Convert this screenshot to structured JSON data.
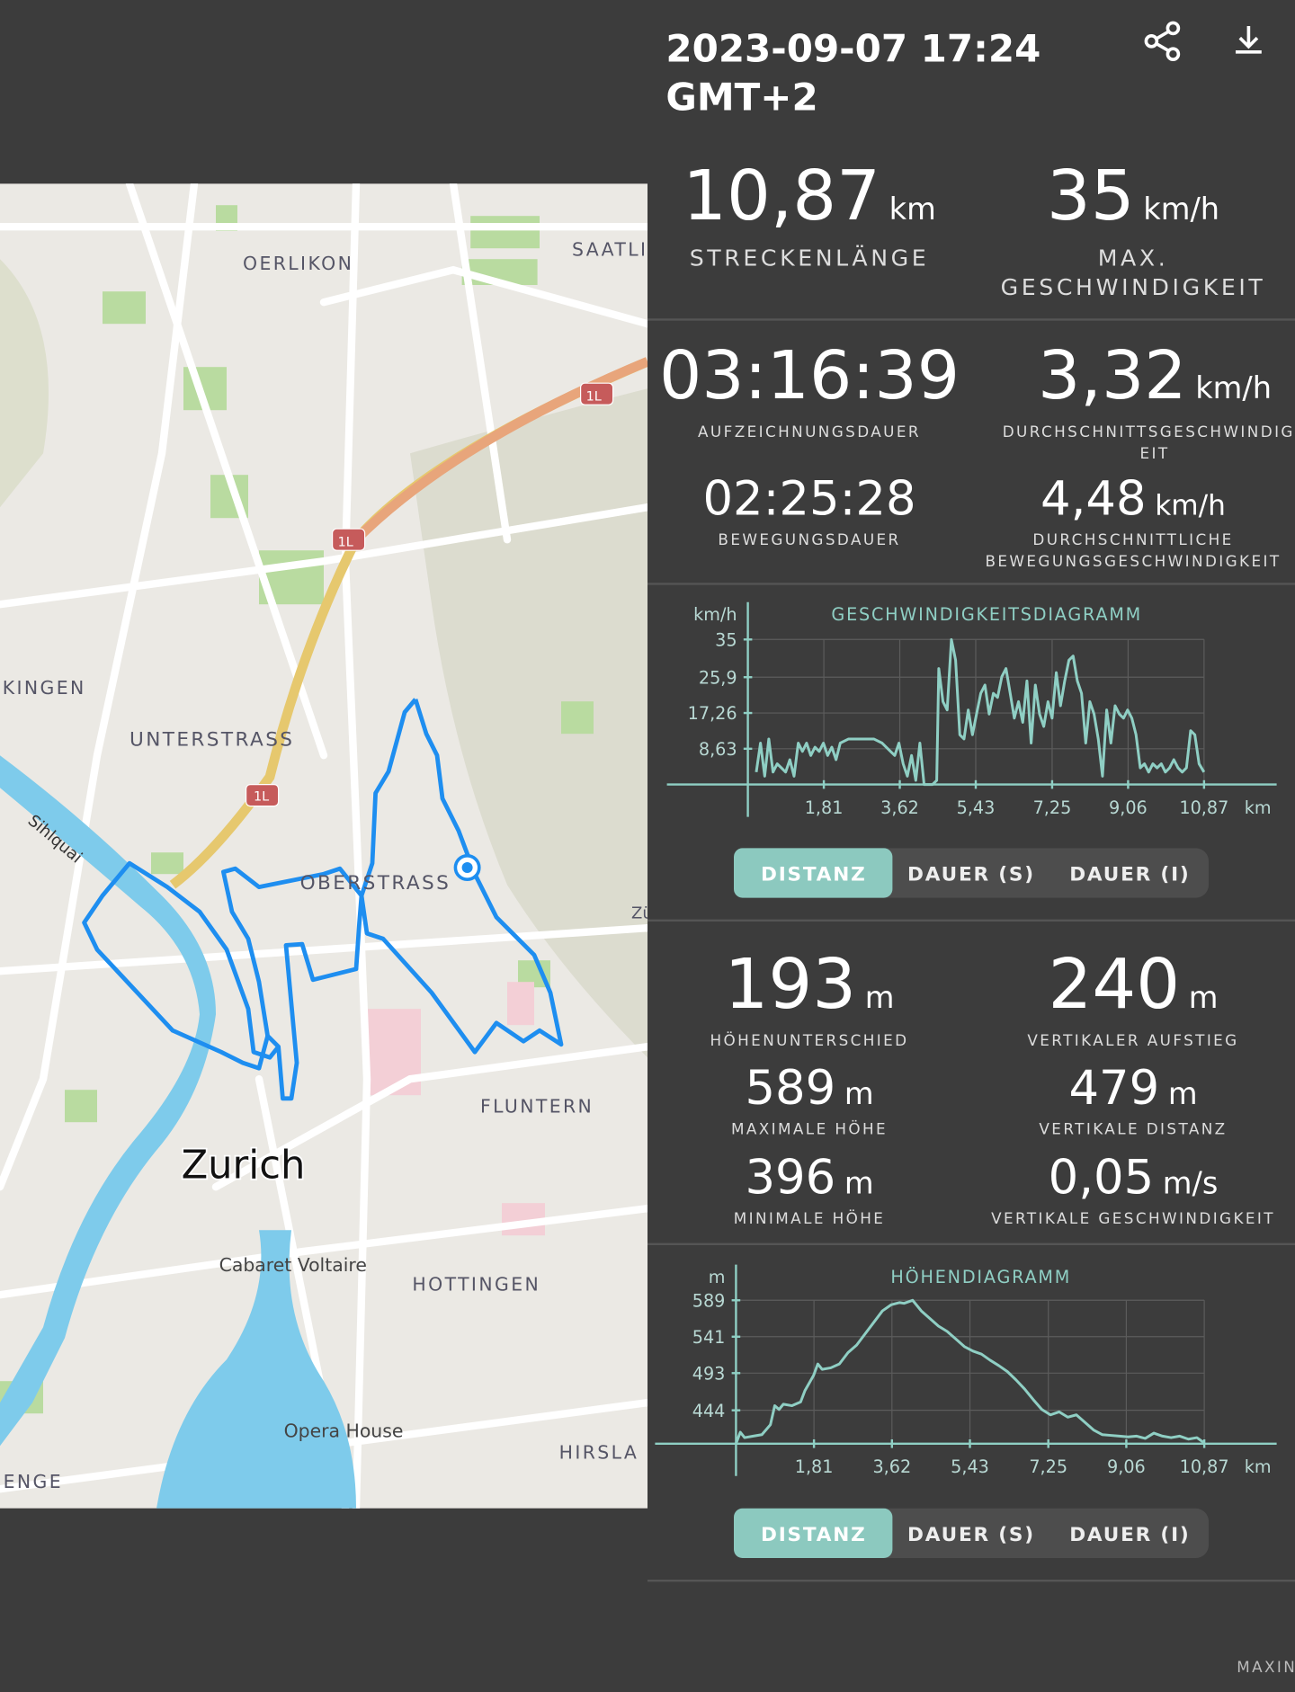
{
  "header": {
    "title_lines": [
      "2023-09-07 17:24",
      "GMT+2"
    ]
  },
  "map": {
    "labels": [
      "OERLIKON",
      "SAATLI",
      "PKINGEN",
      "UNTERSTRASS",
      "Sihlquai",
      "OBERSTRASS",
      "FLUNTERN",
      "Zurich",
      "Cabaret Voltaire",
      "HOTTINGEN",
      "Opera House",
      "HIRSLA",
      "ENGE",
      "1L",
      "1L",
      "1L",
      "Zü"
    ]
  },
  "stats_top": [
    {
      "value": "10,87",
      "unit": "km",
      "label_lines": [
        "STRECKENLÄNGE"
      ]
    },
    {
      "value": "35",
      "unit": "km/h",
      "label_lines": [
        "MAX.",
        "GESCHWINDIGKEIT"
      ]
    },
    {
      "value": "03:16:39",
      "unit": "",
      "label_lines": [
        "AUFZEICHNUNGSDAUER"
      ]
    },
    {
      "value": "3,32",
      "unit": "km/h",
      "label_lines": [
        "DURCHSCHNITTSGESCHWINDIGK",
        "EIT"
      ]
    },
    {
      "value": "02:25:28",
      "unit": "",
      "label_lines": [
        "BEWEGUNGSDAUER"
      ]
    },
    {
      "value": "4,48",
      "unit": "km/h",
      "label_lines": [
        "DURCHSCHNITTLICHE",
        "BEWEGUNGSGESCHWINDIGKEIT"
      ]
    }
  ],
  "stats_elev": [
    {
      "value": "193",
      "unit": "m",
      "label_lines": [
        "HÖHENUNTERSCHIED"
      ]
    },
    {
      "value": "240",
      "unit": "m",
      "label_lines": [
        "VERTIKALER AUFSTIEG"
      ]
    },
    {
      "value": "589",
      "unit": "m",
      "label_lines": [
        "MAXIMALE HÖHE"
      ]
    },
    {
      "value": "479",
      "unit": "m",
      "label_lines": [
        "VERTIKALE DISTANZ"
      ]
    },
    {
      "value": "396",
      "unit": "m",
      "label_lines": [
        "MINIMALE HÖHE"
      ]
    },
    {
      "value": "0,05",
      "unit": "m/s",
      "label_lines": [
        "VERTIKALE GESCHWINDIGKEIT"
      ]
    }
  ],
  "chart_data": [
    {
      "type": "line",
      "title": "GESCHWINDIGKEITSDIAGRAMM",
      "y_label": "km/h",
      "x_label": "km",
      "color": "#8fcfc4",
      "grid": true,
      "xlim": [
        0,
        12.6
      ],
      "ylim": [
        0,
        44
      ],
      "xticks": [
        {
          "value": 1.81,
          "label": "1,81"
        },
        {
          "value": 3.62,
          "label": "3,62"
        },
        {
          "value": 5.43,
          "label": "5,43"
        },
        {
          "value": 7.25,
          "label": "7,25"
        },
        {
          "value": 9.06,
          "label": "9,06"
        },
        {
          "value": 10.87,
          "label": "10,87"
        }
      ],
      "yticks": [
        {
          "value": 8.63,
          "label": "8,63"
        },
        {
          "value": 17.26,
          "label": "17,26"
        },
        {
          "value": 25.9,
          "label": "25,9"
        },
        35
      ],
      "x": [
        0.2,
        0.3,
        0.4,
        0.5,
        0.6,
        0.7,
        0.8,
        0.9,
        1.0,
        1.1,
        1.2,
        1.3,
        1.4,
        1.5,
        1.6,
        1.7,
        1.8,
        1.9,
        2.0,
        2.1,
        2.2,
        2.4,
        2.7,
        3.0,
        3.2,
        3.4,
        3.5,
        3.6,
        3.7,
        3.8,
        3.9,
        4.0,
        4.1,
        4.2,
        4.4,
        4.5,
        4.55,
        4.65,
        4.75,
        4.85,
        4.95,
        5.05,
        5.15,
        5.25,
        5.35,
        5.45,
        5.55,
        5.65,
        5.75,
        5.85,
        5.95,
        6.05,
        6.15,
        6.25,
        6.35,
        6.45,
        6.55,
        6.65,
        6.75,
        6.85,
        6.95,
        7.05,
        7.15,
        7.25,
        7.35,
        7.45,
        7.55,
        7.65,
        7.75,
        7.85,
        7.95,
        8.05,
        8.15,
        8.25,
        8.35,
        8.45,
        8.55,
        8.65,
        8.75,
        8.85,
        8.95,
        9.05,
        9.15,
        9.25,
        9.35,
        9.45,
        9.55,
        9.65,
        9.75,
        9.85,
        9.95,
        10.05,
        10.15,
        10.25,
        10.35,
        10.45,
        10.55,
        10.65,
        10.75,
        10.87
      ],
      "values": [
        3,
        10,
        2,
        11,
        3,
        5,
        4,
        3,
        6,
        2,
        10,
        8,
        10,
        7,
        9,
        8,
        10,
        7,
        9,
        6,
        10,
        11,
        11,
        11,
        10,
        8,
        7,
        10,
        5,
        2,
        7,
        1,
        10,
        0,
        0,
        1,
        28,
        20,
        18,
        35,
        30,
        12,
        11,
        18,
        12,
        17,
        22,
        24,
        17,
        22,
        21,
        26,
        28,
        22,
        16,
        20,
        15,
        25,
        10,
        24,
        17,
        14,
        20,
        16,
        27,
        19,
        25,
        30,
        31,
        25,
        22,
        10,
        20,
        17,
        11,
        2,
        18,
        10,
        19,
        17,
        16,
        18,
        16,
        12,
        4,
        5,
        3,
        5,
        4,
        5,
        3,
        4,
        6,
        4,
        3,
        4,
        13,
        12,
        5,
        3
      ],
      "buttons": [
        "DISTANZ",
        "DAUER (S)",
        "DAUER (I)"
      ]
    },
    {
      "type": "line",
      "title": "HÖHENDIAGRAMM",
      "y_label": "m",
      "x_label": "km",
      "color": "#8fcfc4",
      "grid": true,
      "xlim": [
        0,
        12.55
      ],
      "ylim": [
        400,
        636
      ],
      "xticks": [
        {
          "value": 1.81,
          "label": "1,81"
        },
        {
          "value": 3.62,
          "label": "3,62"
        },
        {
          "value": 5.43,
          "label": "5,43"
        },
        {
          "value": 7.25,
          "label": "7,25"
        },
        {
          "value": 9.06,
          "label": "9,06"
        },
        {
          "value": 10.87,
          "label": "10,87"
        }
      ],
      "yticks": [
        444,
        493,
        541,
        589
      ],
      "x": [
        0,
        0.1,
        0.2,
        0.4,
        0.6,
        0.8,
        0.9,
        1.0,
        1.1,
        1.3,
        1.5,
        1.6,
        1.8,
        1.9,
        2.0,
        2.2,
        2.4,
        2.6,
        2.8,
        3.0,
        3.2,
        3.4,
        3.6,
        3.8,
        3.9,
        4.1,
        4.3,
        4.5,
        4.7,
        4.9,
        5.1,
        5.3,
        5.5,
        5.7,
        5.9,
        6.1,
        6.3,
        6.5,
        6.7,
        6.9,
        7.1,
        7.3,
        7.5,
        7.7,
        7.9,
        8.1,
        8.3,
        8.5,
        8.7,
        8.9,
        9.1,
        9.3,
        9.5,
        9.7,
        9.9,
        10.1,
        10.3,
        10.5,
        10.7,
        10.87
      ],
      "values": [
        400,
        415,
        408,
        410,
        412,
        425,
        450,
        445,
        452,
        450,
        455,
        470,
        490,
        505,
        498,
        500,
        505,
        520,
        530,
        545,
        560,
        575,
        583,
        586,
        585,
        589,
        575,
        565,
        555,
        548,
        538,
        528,
        522,
        518,
        510,
        503,
        495,
        484,
        472,
        458,
        445,
        438,
        442,
        435,
        438,
        428,
        418,
        412,
        411,
        410,
        409,
        410,
        407,
        414,
        410,
        408,
        410,
        406,
        408,
        401
      ],
      "buttons": [
        "DISTANZ",
        "DAUER (S)",
        "DAUER (I)"
      ]
    }
  ],
  "footer": {
    "text": "MAXIN"
  }
}
